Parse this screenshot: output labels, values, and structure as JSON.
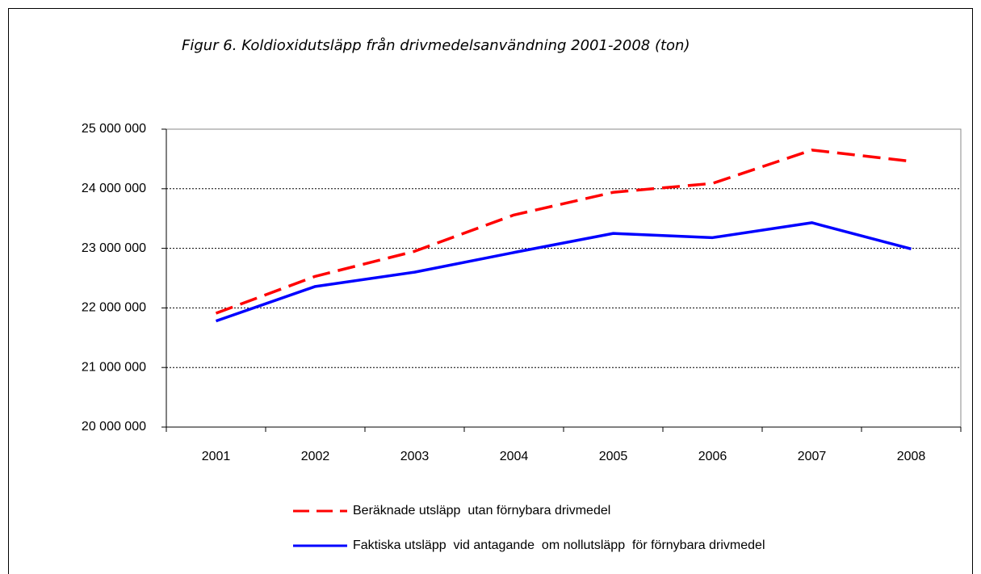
{
  "chart_data": {
    "type": "line",
    "title": "Figur 6. Koldioxidutsläpp från drivmedelsanvändning 2001-2008 (ton)",
    "categories": [
      "2001",
      "2002",
      "2003",
      "2004",
      "2005",
      "2006",
      "2007",
      "2008"
    ],
    "series": [
      {
        "name": "Beräknade utsläpp  utan förnybara drivmedel",
        "color": "#ff0000",
        "style": "dashed",
        "values": [
          21910000,
          22530000,
          22950000,
          23560000,
          23940000,
          24090000,
          24650000,
          24460000
        ]
      },
      {
        "name": "Faktiska utsläpp  vid antagande  om nollutsläpp  för förnybara drivmedel",
        "color": "#0000ff",
        "style": "solid",
        "values": [
          21780000,
          22360000,
          22600000,
          22930000,
          23250000,
          23180000,
          23430000,
          22990000
        ]
      }
    ],
    "ylim": [
      20000000,
      25000000
    ],
    "yticks": [
      {
        "value": 20000000,
        "label": "20 000 000"
      },
      {
        "value": 21000000,
        "label": "21 000 000"
      },
      {
        "value": 22000000,
        "label": "22 000 000"
      },
      {
        "value": 23000000,
        "label": "23 000 000"
      },
      {
        "value": 24000000,
        "label": "24 000 000"
      },
      {
        "value": 25000000,
        "label": "25 000 000"
      }
    ],
    "grid": true,
    "legend": "bottom"
  }
}
